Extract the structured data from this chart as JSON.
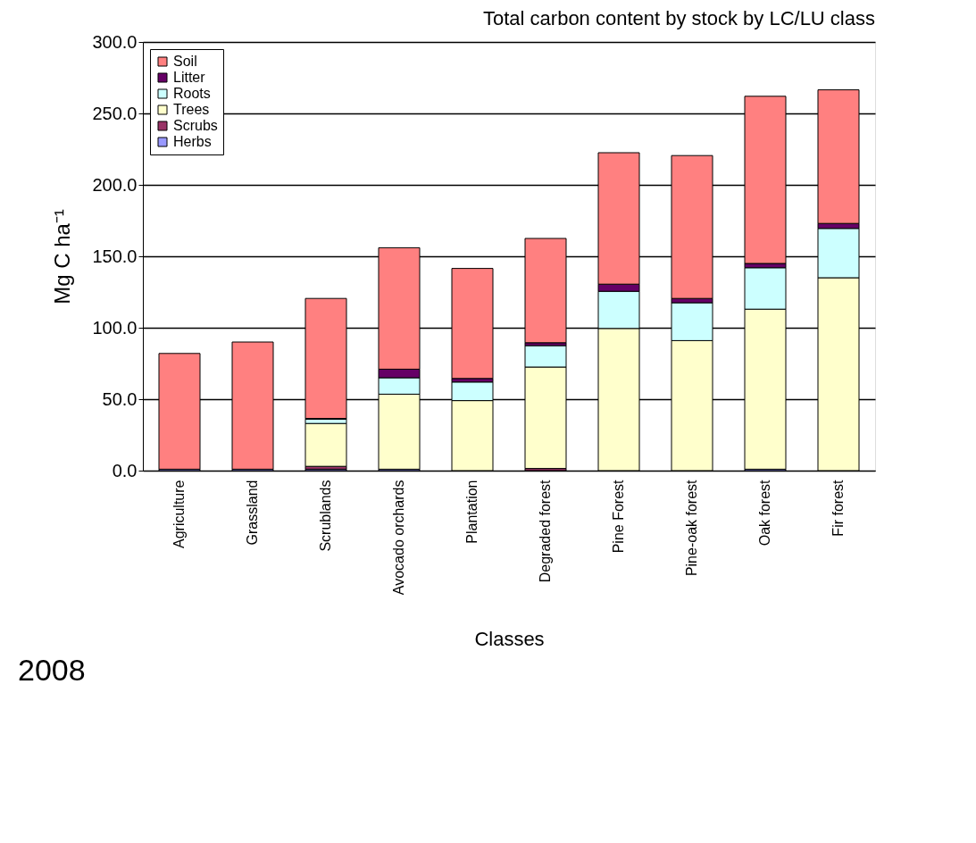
{
  "chart_data": {
    "type": "bar",
    "title": "Total carbon content by stock by LC/LU class",
    "xlabel": "Classes",
    "ylabel": "Mg C ha⁻¹",
    "stacked": true,
    "legend": "top left",
    "grid": "y",
    "categories": [
      "Agriculture",
      "Grassland",
      "Scrublands",
      "Avocado orchards",
      "Plantation",
      "Degraded forest",
      "Pine Forest",
      "Pine-oak forest",
      "Oak forest",
      "Fir forest"
    ],
    "series": [
      {
        "name": "Herbs",
        "color": "#9999ff",
        "values": [
          1,
          1,
          1,
          1,
          null,
          null,
          null,
          null,
          1,
          null
        ]
      },
      {
        "name": "Scrubs",
        "color": "#993366",
        "values": [
          0,
          0,
          2,
          0,
          0,
          1.5,
          0,
          0,
          0,
          0
        ]
      },
      {
        "name": "Trees",
        "color": "#ffffcc",
        "values": [
          0,
          0,
          30,
          52.5,
          49,
          71,
          99.5,
          91,
          112,
          135
        ]
      },
      {
        "name": "Roots",
        "color": "#ccffff",
        "values": [
          0,
          0,
          3,
          11.5,
          13,
          15,
          26,
          26.5,
          29,
          34.5
        ]
      },
      {
        "name": "Litter",
        "color": "#660066",
        "values": [
          0,
          0,
          0.5,
          6,
          2.5,
          2,
          5,
          3,
          3,
          3.5
        ]
      },
      {
        "name": "Soil",
        "color": "#ff8080",
        "values": [
          81,
          89,
          84,
          85,
          77,
          73,
          92,
          100,
          117,
          93.5
        ]
      }
    ],
    "ylim": [
      0,
      300
    ],
    "yticks": [
      {
        "value": 0,
        "label": "0.0"
      },
      {
        "value": 50,
        "label": "50.0"
      },
      {
        "value": 100,
        "label": "100.0"
      },
      {
        "value": 150,
        "label": "150.0"
      },
      {
        "value": 200,
        "label": "200.0"
      },
      {
        "value": 250,
        "label": "250.0"
      },
      {
        "value": 300,
        "label": "300.0"
      }
    ],
    "annotations": [
      "2008"
    ]
  }
}
